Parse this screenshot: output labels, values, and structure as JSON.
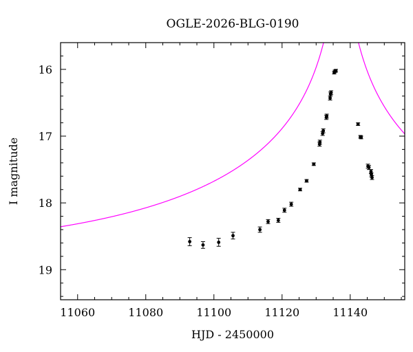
{
  "chart_data": {
    "type": "scatter",
    "title": "OGLE-2026-BLG-0190",
    "xlabel": "HJD - 2450000",
    "ylabel": "I magnitude",
    "xlim": [
      11055,
      11156
    ],
    "ylim": [
      19.45,
      15.6
    ],
    "y_inverted": true,
    "x_ticks": [
      "11060",
      "11080",
      "11100",
      "11120",
      "11140"
    ],
    "y_ticks": [
      "16",
      "17",
      "18",
      "19"
    ],
    "grid": false,
    "colors": {
      "points": "#000000",
      "model": "#ff00ff",
      "axes": "#000000"
    },
    "series": [
      {
        "kind": "points",
        "x": [
          11092.9,
          11096.8,
          11101.4,
          11105.6,
          11113.5,
          11115.9,
          11118.9,
          11120.7,
          11122.7,
          11125.3,
          11127.2,
          11129.3,
          11131.0,
          11131.1,
          11131.9,
          11132.1,
          11133.0,
          11133.1,
          11134.1,
          11134.2,
          11134.4,
          11135.3,
          11135.5,
          11135.8,
          11142.3,
          11143.0,
          11143.2,
          11145.2,
          11145.5,
          11146.1,
          11146.2,
          11146.4
        ],
        "y": [
          18.58,
          18.63,
          18.59,
          18.49,
          18.4,
          18.28,
          18.26,
          18.11,
          18.02,
          17.8,
          17.67,
          17.42,
          17.12,
          17.09,
          16.96,
          16.92,
          16.72,
          16.7,
          16.43,
          16.37,
          16.35,
          16.05,
          16.03,
          16.02,
          16.82,
          17.01,
          17.02,
          17.45,
          17.47,
          17.53,
          17.58,
          17.62
        ],
        "err": [
          0.06,
          0.05,
          0.06,
          0.05,
          0.04,
          0.03,
          0.03,
          0.03,
          0.03,
          0.02,
          0.02,
          0.02,
          0.03,
          0.03,
          0.03,
          0.03,
          0.03,
          0.03,
          0.03,
          0.03,
          0.03,
          0.02,
          0.02,
          0.02,
          0.02,
          0.02,
          0.02,
          0.03,
          0.03,
          0.03,
          0.03,
          0.03
        ]
      },
      {
        "kind": "model",
        "model_type": "paczynski",
        "t0": 11137.3,
        "tE": 100,
        "u0": 0.0115,
        "baseline_mag": 18.8,
        "x_range": [
          11055,
          11156
        ]
      }
    ]
  }
}
